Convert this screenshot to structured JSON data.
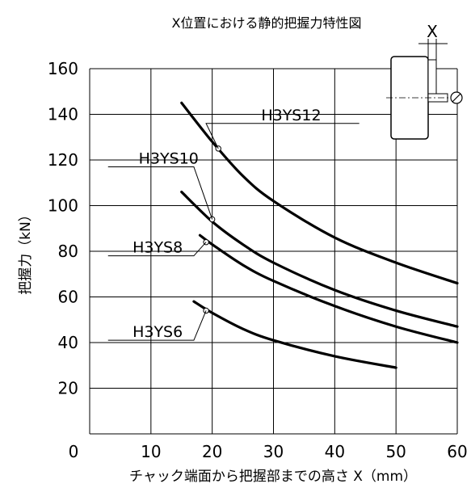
{
  "chart_data": {
    "type": "line",
    "title": "X位置における静的把握力特性図",
    "xlabel": "チャック端面から把握部までの高さ X（mm）",
    "ylabel": "把握力（kN）",
    "xlim": [
      0,
      60
    ],
    "ylim": [
      0,
      160
    ],
    "x_ticks": [
      "0",
      "10",
      "20",
      "30",
      "40",
      "50",
      "60"
    ],
    "y_ticks": [
      "20",
      "40",
      "60",
      "80",
      "100",
      "120",
      "140",
      "160"
    ],
    "grid": true,
    "series": [
      {
        "name": "H3YS12",
        "x": [
          15,
          20,
          25,
          30,
          40,
          50,
          60
        ],
        "y": [
          145,
          128,
          113,
          102,
          86,
          75,
          66
        ],
        "marker": [
          21,
          125
        ]
      },
      {
        "name": "H3YS10",
        "x": [
          15,
          20,
          25,
          30,
          40,
          50,
          60
        ],
        "y": [
          106,
          93,
          83,
          75,
          63,
          54,
          47
        ],
        "marker": [
          20,
          94
        ]
      },
      {
        "name": "H3YS8",
        "x": [
          18,
          20,
          25,
          30,
          40,
          50,
          60
        ],
        "y": [
          87,
          83,
          74,
          67,
          56,
          47,
          40
        ],
        "marker": [
          19,
          84
        ]
      },
      {
        "name": "H3YS6",
        "x": [
          17,
          20,
          25,
          30,
          40,
          50
        ],
        "y": [
          58,
          53,
          46,
          41,
          34,
          29
        ],
        "marker": [
          19,
          54
        ]
      }
    ],
    "inset": {
      "label": "X"
    }
  }
}
